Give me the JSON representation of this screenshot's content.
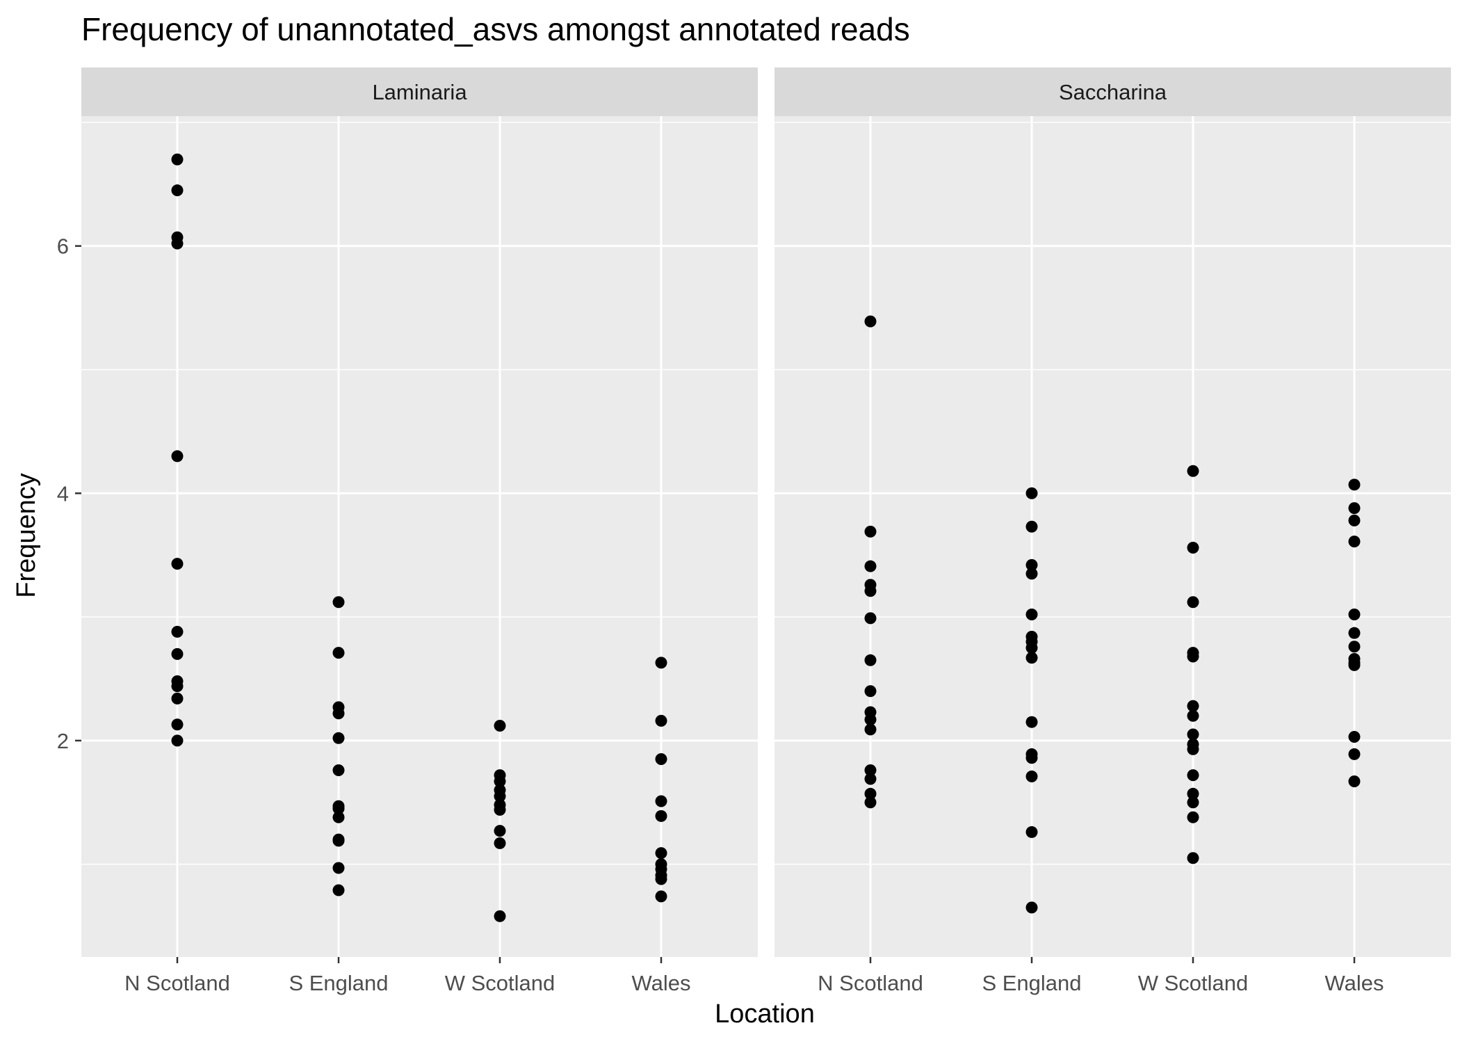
{
  "chart_data": {
    "type": "scatter",
    "title": "Frequency of unannotated_asvs amongst annotated reads",
    "xlabel": "Location",
    "ylabel": "Frequency",
    "categories": [
      "N Scotland",
      "S England",
      "W Scotland",
      "Wales"
    ],
    "y_ticks": [
      2,
      4,
      6
    ],
    "ylim": [
      0.25,
      7.05
    ],
    "grid": true,
    "panels": [
      {
        "name": "Laminaria",
        "series": [
          {
            "x": "N Scotland",
            "values": [
              6.7,
              6.45,
              6.07,
              6.02,
              4.3,
              3.43,
              2.88,
              2.7,
              2.48,
              2.44,
              2.34,
              2.13,
              2.0
            ]
          },
          {
            "x": "S England",
            "values": [
              3.12,
              2.71,
              2.27,
              2.22,
              2.02,
              1.76,
              1.47,
              1.45,
              1.38,
              1.2,
              1.19,
              0.97,
              0.79
            ]
          },
          {
            "x": "W Scotland",
            "values": [
              2.12,
              1.72,
              1.67,
              1.6,
              1.55,
              1.48,
              1.44,
              1.27,
              1.17,
              0.58
            ]
          },
          {
            "x": "Wales",
            "values": [
              2.63,
              2.16,
              1.85,
              1.51,
              1.39,
              1.09,
              1.0,
              0.96,
              0.91,
              0.88,
              0.74
            ]
          }
        ]
      },
      {
        "name": "Saccharina",
        "series": [
          {
            "x": "N Scotland",
            "values": [
              5.39,
              3.69,
              3.41,
              3.26,
              3.21,
              2.99,
              2.65,
              2.4,
              2.23,
              2.17,
              2.09,
              1.76,
              1.69,
              1.57,
              1.5
            ]
          },
          {
            "x": "S England",
            "values": [
              4.0,
              3.73,
              3.42,
              3.35,
              3.02,
              2.84,
              2.8,
              2.75,
              2.67,
              2.15,
              1.89,
              1.86,
              1.71,
              1.26,
              0.65
            ]
          },
          {
            "x": "W Scotland",
            "values": [
              4.18,
              3.56,
              3.12,
              2.71,
              2.68,
              2.28,
              2.2,
              2.05,
              1.97,
              1.93,
              1.72,
              1.57,
              1.5,
              1.38,
              1.05
            ]
          },
          {
            "x": "Wales",
            "values": [
              4.07,
              3.88,
              3.78,
              3.61,
              3.02,
              2.87,
              2.76,
              2.66,
              2.63,
              2.61,
              2.03,
              1.89,
              1.67
            ]
          }
        ]
      }
    ]
  }
}
